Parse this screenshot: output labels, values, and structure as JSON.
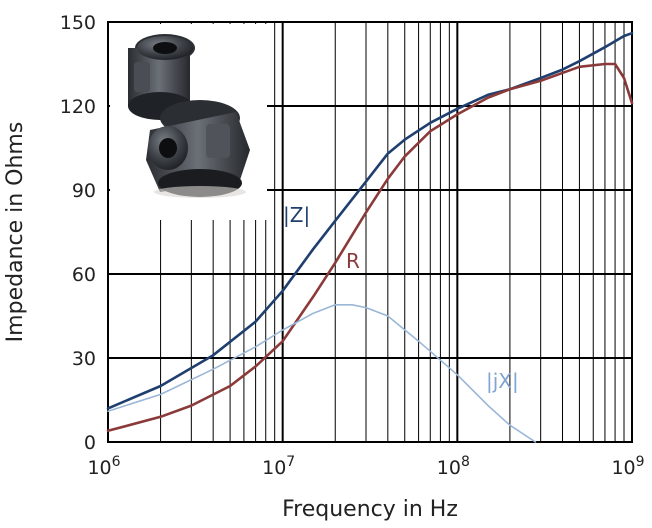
{
  "chart_data": {
    "type": "line",
    "title": "",
    "xlabel": "Frequency in Hz",
    "ylabel": "Impedance in Ohms",
    "x_scale": "log",
    "xlim": [
      1000000,
      1000000000
    ],
    "ylim": [
      0,
      150
    ],
    "x_ticks": [
      {
        "base": "10",
        "exp": "6"
      },
      {
        "base": "10",
        "exp": "7"
      },
      {
        "base": "10",
        "exp": "8"
      },
      {
        "base": "10",
        "exp": "9"
      }
    ],
    "y_ticks": [
      "0",
      "30",
      "60",
      "90",
      "120",
      "150"
    ],
    "grid": true,
    "series": [
      {
        "name": "|Z|",
        "color": "#1f3f6e",
        "x": [
          1000000,
          2000000,
          4000000,
          7000000,
          10000000,
          15000000,
          20000000,
          30000000,
          40000000,
          50000000,
          70000000,
          100000000,
          150000000,
          200000000,
          300000000,
          400000000,
          500000000,
          700000000,
          900000000,
          1000000000
        ],
        "y": [
          12,
          20,
          31,
          43,
          54,
          69,
          79,
          93,
          103,
          108,
          114,
          119,
          124,
          126,
          130,
          133,
          136,
          141,
          145,
          146
        ]
      },
      {
        "name": "R",
        "color": "#8b3a3a",
        "x": [
          1000000,
          2000000,
          3000000,
          5000000,
          7000000,
          10000000,
          15000000,
          20000000,
          30000000,
          40000000,
          50000000,
          70000000,
          100000000,
          150000000,
          200000000,
          300000000,
          500000000,
          700000000,
          800000000,
          900000000,
          1000000000
        ],
        "y": [
          4,
          9,
          13,
          20,
          27,
          36,
          52,
          64,
          82,
          94,
          102,
          111,
          117,
          123,
          126,
          129,
          134,
          135,
          135,
          130,
          121
        ]
      },
      {
        "name": "|jX|",
        "color": "#9ab7d8",
        "x": [
          1000000,
          2000000,
          4000000,
          7000000,
          10000000,
          15000000,
          20000000,
          25000000,
          30000000,
          40000000,
          60000000,
          100000000,
          150000000,
          200000000,
          280000000
        ],
        "y": [
          11,
          17,
          26,
          34,
          40,
          46,
          49,
          49,
          48,
          45,
          36,
          24,
          13,
          6,
          0
        ]
      }
    ]
  }
}
